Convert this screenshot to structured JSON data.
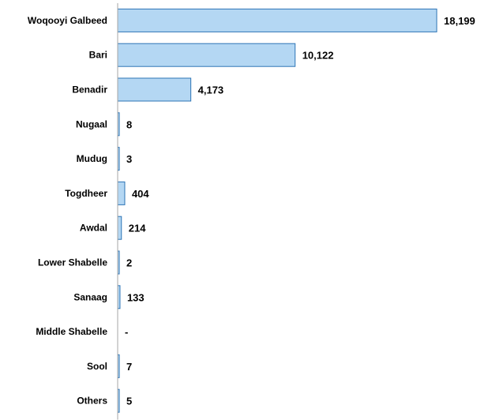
{
  "chart_data": {
    "type": "bar",
    "orientation": "horizontal",
    "categories": [
      "Woqooyi Galbeed",
      "Bari",
      "Benadir",
      "Nugaal",
      "Mudug",
      "Togdheer",
      "Awdal",
      "Lower Shabelle",
      "Sanaag",
      "Middle Shabelle",
      "Sool",
      "Others"
    ],
    "values": [
      18199,
      10122,
      4173,
      8,
      3,
      404,
      214,
      2,
      133,
      0,
      7,
      5
    ],
    "value_labels": [
      "18,199",
      "10,122",
      "4,173",
      "8",
      "3",
      "404",
      "214",
      "2",
      "133",
      "-",
      "7",
      "5"
    ],
    "title": "",
    "xlabel": "",
    "ylabel": "",
    "xlim": [
      0,
      18199
    ],
    "grid": false,
    "legend": "none",
    "colors": {
      "bar_fill": "#B4D7F3",
      "bar_stroke": "#2E75B6",
      "axis": "#A6A6A6"
    }
  }
}
